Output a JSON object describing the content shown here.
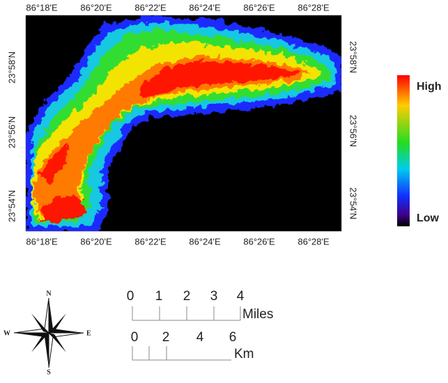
{
  "map": {
    "longitude_labels_top": [
      "86°18'E",
      "86°20'E",
      "86°22'E",
      "86°24'E",
      "86°26'E",
      "86°28'E"
    ],
    "longitude_labels_bottom": [
      "86°18'E",
      "86°20'E",
      "86°22'E",
      "86°24'E",
      "86°26'E",
      "86°28'E"
    ],
    "latitude_labels_left": [
      "23°58'N",
      "23°56'N",
      "23°54'N"
    ],
    "latitude_labels_right": [
      "23°58'N",
      "23°56'N",
      "23°54'N"
    ],
    "legend": {
      "high": "High",
      "low": "Low"
    },
    "north_arrow": {
      "n": "N",
      "s": "S",
      "e": "E",
      "w": "W"
    },
    "scale_bar": {
      "miles": {
        "labels": [
          "0",
          "1",
          "2",
          "3",
          "4"
        ],
        "unit": "Miles"
      },
      "km": {
        "labels": [
          "0",
          "2",
          "4",
          "6"
        ],
        "unit": "Km"
      }
    }
  }
}
